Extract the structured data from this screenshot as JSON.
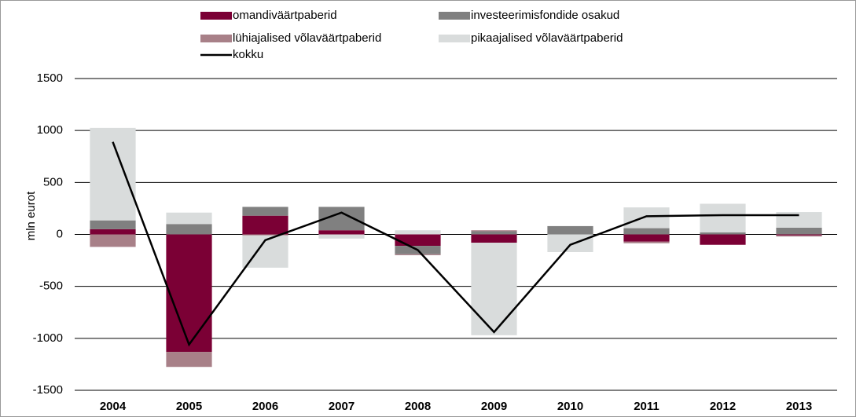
{
  "chart_data": {
    "type": "stacked-bar-line",
    "y_label": "mln eurot",
    "categories": [
      "2004",
      "2005",
      "2006",
      "2007",
      "2008",
      "2009",
      "2010",
      "2011",
      "2012",
      "2013"
    ],
    "series": [
      {
        "name": "omandiväärtpaberid",
        "type": "bar",
        "color": "#7b0035",
        "values": [
          50,
          -1130,
          180,
          40,
          -110,
          -80,
          0,
          -70,
          -100,
          -10
        ]
      },
      {
        "name": "investeerimisfondide osakud",
        "type": "bar",
        "color": "#808080",
        "values": [
          85,
          100,
          85,
          225,
          -80,
          30,
          80,
          60,
          20,
          65
        ]
      },
      {
        "name": "lühiajalised võlaväärtpaberid",
        "type": "bar",
        "color": "#a88088",
        "values": [
          -120,
          -145,
          -10,
          0,
          -10,
          10,
          0,
          -15,
          0,
          -10
        ]
      },
      {
        "name": "pikaajalised võlaväärtpaberid",
        "type": "bar",
        "color": "#d9dcdc",
        "values": [
          890,
          110,
          -310,
          -40,
          40,
          -890,
          -170,
          200,
          275,
          150
        ]
      },
      {
        "name": "kokku",
        "type": "line",
        "color": "#000000",
        "values": [
          890,
          -1060,
          -55,
          210,
          -150,
          -940,
          -100,
          175,
          185,
          185
        ]
      }
    ],
    "ylim": [
      -1500,
      1500
    ],
    "yticks": [
      -1500,
      -1000,
      -500,
      0,
      500,
      1000,
      1500
    ],
    "grid": true
  }
}
